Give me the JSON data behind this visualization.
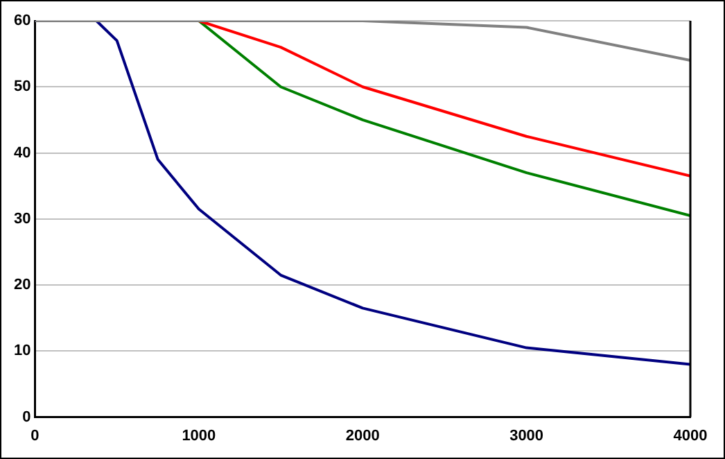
{
  "chart_data": {
    "type": "line",
    "xlim": [
      0,
      4000
    ],
    "xticks": [
      0,
      1000,
      2000,
      3000,
      4000
    ],
    "ylim": [
      0,
      60
    ],
    "yticks": [
      0,
      10,
      20,
      30,
      40,
      50,
      60
    ],
    "grid": "y",
    "legend": false,
    "marker": "none",
    "line_style": "solid",
    "series": [
      {
        "color": "#808080",
        "x": [
          0,
          1000,
          2000,
          3000,
          4000
        ],
        "values": [
          60,
          60,
          60,
          59,
          54
        ]
      },
      {
        "color": "#ff0000",
        "x": [
          1000,
          1500,
          2000,
          3000,
          4000
        ],
        "values": [
          60,
          56,
          50,
          42.5,
          36.5
        ]
      },
      {
        "color": "#008000",
        "x": [
          1000,
          1500,
          2000,
          3000,
          4000
        ],
        "values": [
          60,
          50,
          45,
          37,
          30.5
        ]
      },
      {
        "color": "#000080",
        "x": [
          0,
          375,
          500,
          750,
          1000,
          1500,
          2000,
          3000,
          4000
        ],
        "values": [
          60,
          60,
          57,
          39,
          31.5,
          21.5,
          16.5,
          10.5,
          8
        ]
      }
    ]
  }
}
